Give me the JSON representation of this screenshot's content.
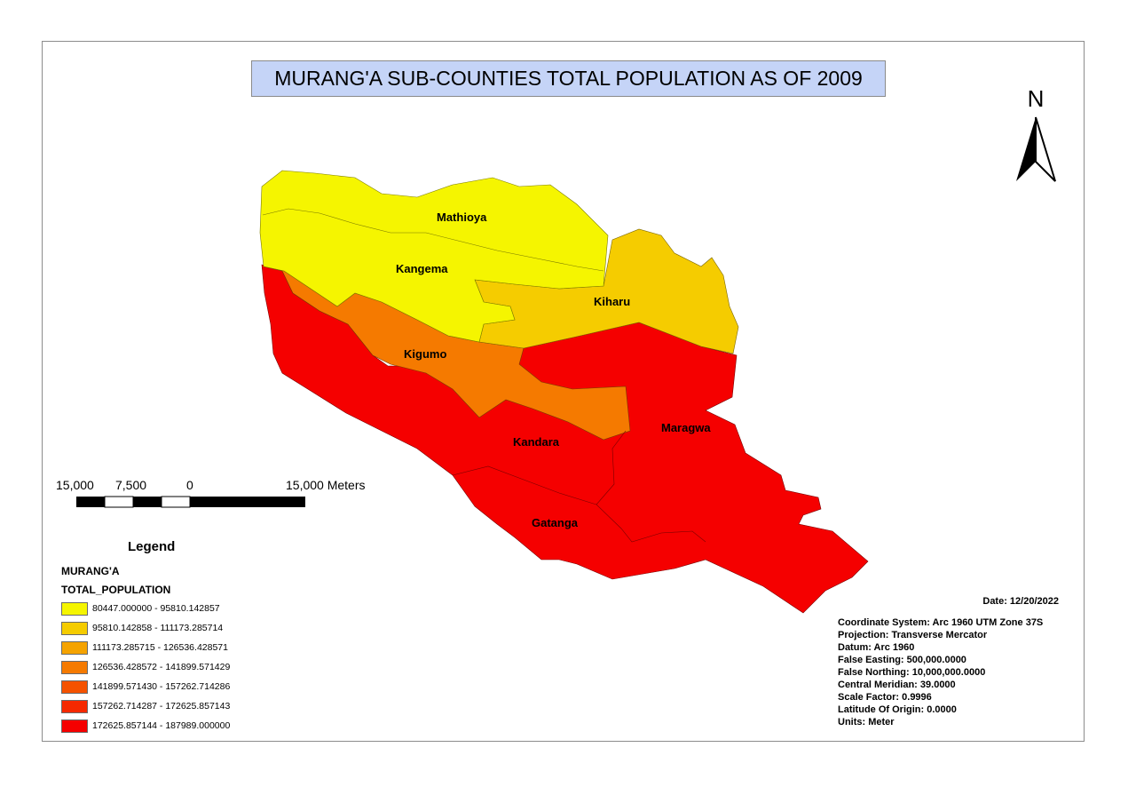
{
  "title": "MURANG'A SUB-COUNTIES TOTAL POPULATION AS OF 2009",
  "north_arrow": {
    "label": "N",
    "icon": "north-arrow-icon"
  },
  "regions": [
    {
      "name": "Mathioya",
      "class": 0
    },
    {
      "name": "Kangema",
      "class": 0
    },
    {
      "name": "Kiharu",
      "class": 1
    },
    {
      "name": "Kigumo",
      "class": 3
    },
    {
      "name": "Kandara",
      "class": 6
    },
    {
      "name": "Maragwa",
      "class": 6
    },
    {
      "name": "Gatanga",
      "class": 6
    }
  ],
  "scale_bar": {
    "labels": [
      "15,000",
      "7,500",
      "0",
      "15,000 Meters"
    ]
  },
  "legend": {
    "title": "Legend",
    "layer": "MURANG'A",
    "field": "TOTAL_POPULATION",
    "classes": [
      {
        "label": "80447.000000 - 95810.142857",
        "color": "#f5f500"
      },
      {
        "label": "95810.142858 - 111173.285714",
        "color": "#f5cc00"
      },
      {
        "label": "111173.285715 - 126536.428571",
        "color": "#f5a300"
      },
      {
        "label": "126536.428572 - 141899.571429",
        "color": "#f57a00"
      },
      {
        "label": "141899.571430 - 157262.714286",
        "color": "#f55200"
      },
      {
        "label": "157262.714287 - 172625.857143",
        "color": "#f52900"
      },
      {
        "label": "172625.857144 - 187989.000000",
        "color": "#f50000"
      }
    ]
  },
  "date": "Date: 12/20/2022",
  "projection_info": [
    "Coordinate System: Arc 1960 UTM Zone 37S",
    "Projection: Transverse Mercator",
    "Datum: Arc 1960",
    "False Easting: 500,000.0000",
    "False Northing: 10,000,000.0000",
    "Central Meridian: 39.0000",
    "Scale Factor: 0.9996",
    "Latitude Of Origin: 0.0000",
    "Units: Meter"
  ]
}
